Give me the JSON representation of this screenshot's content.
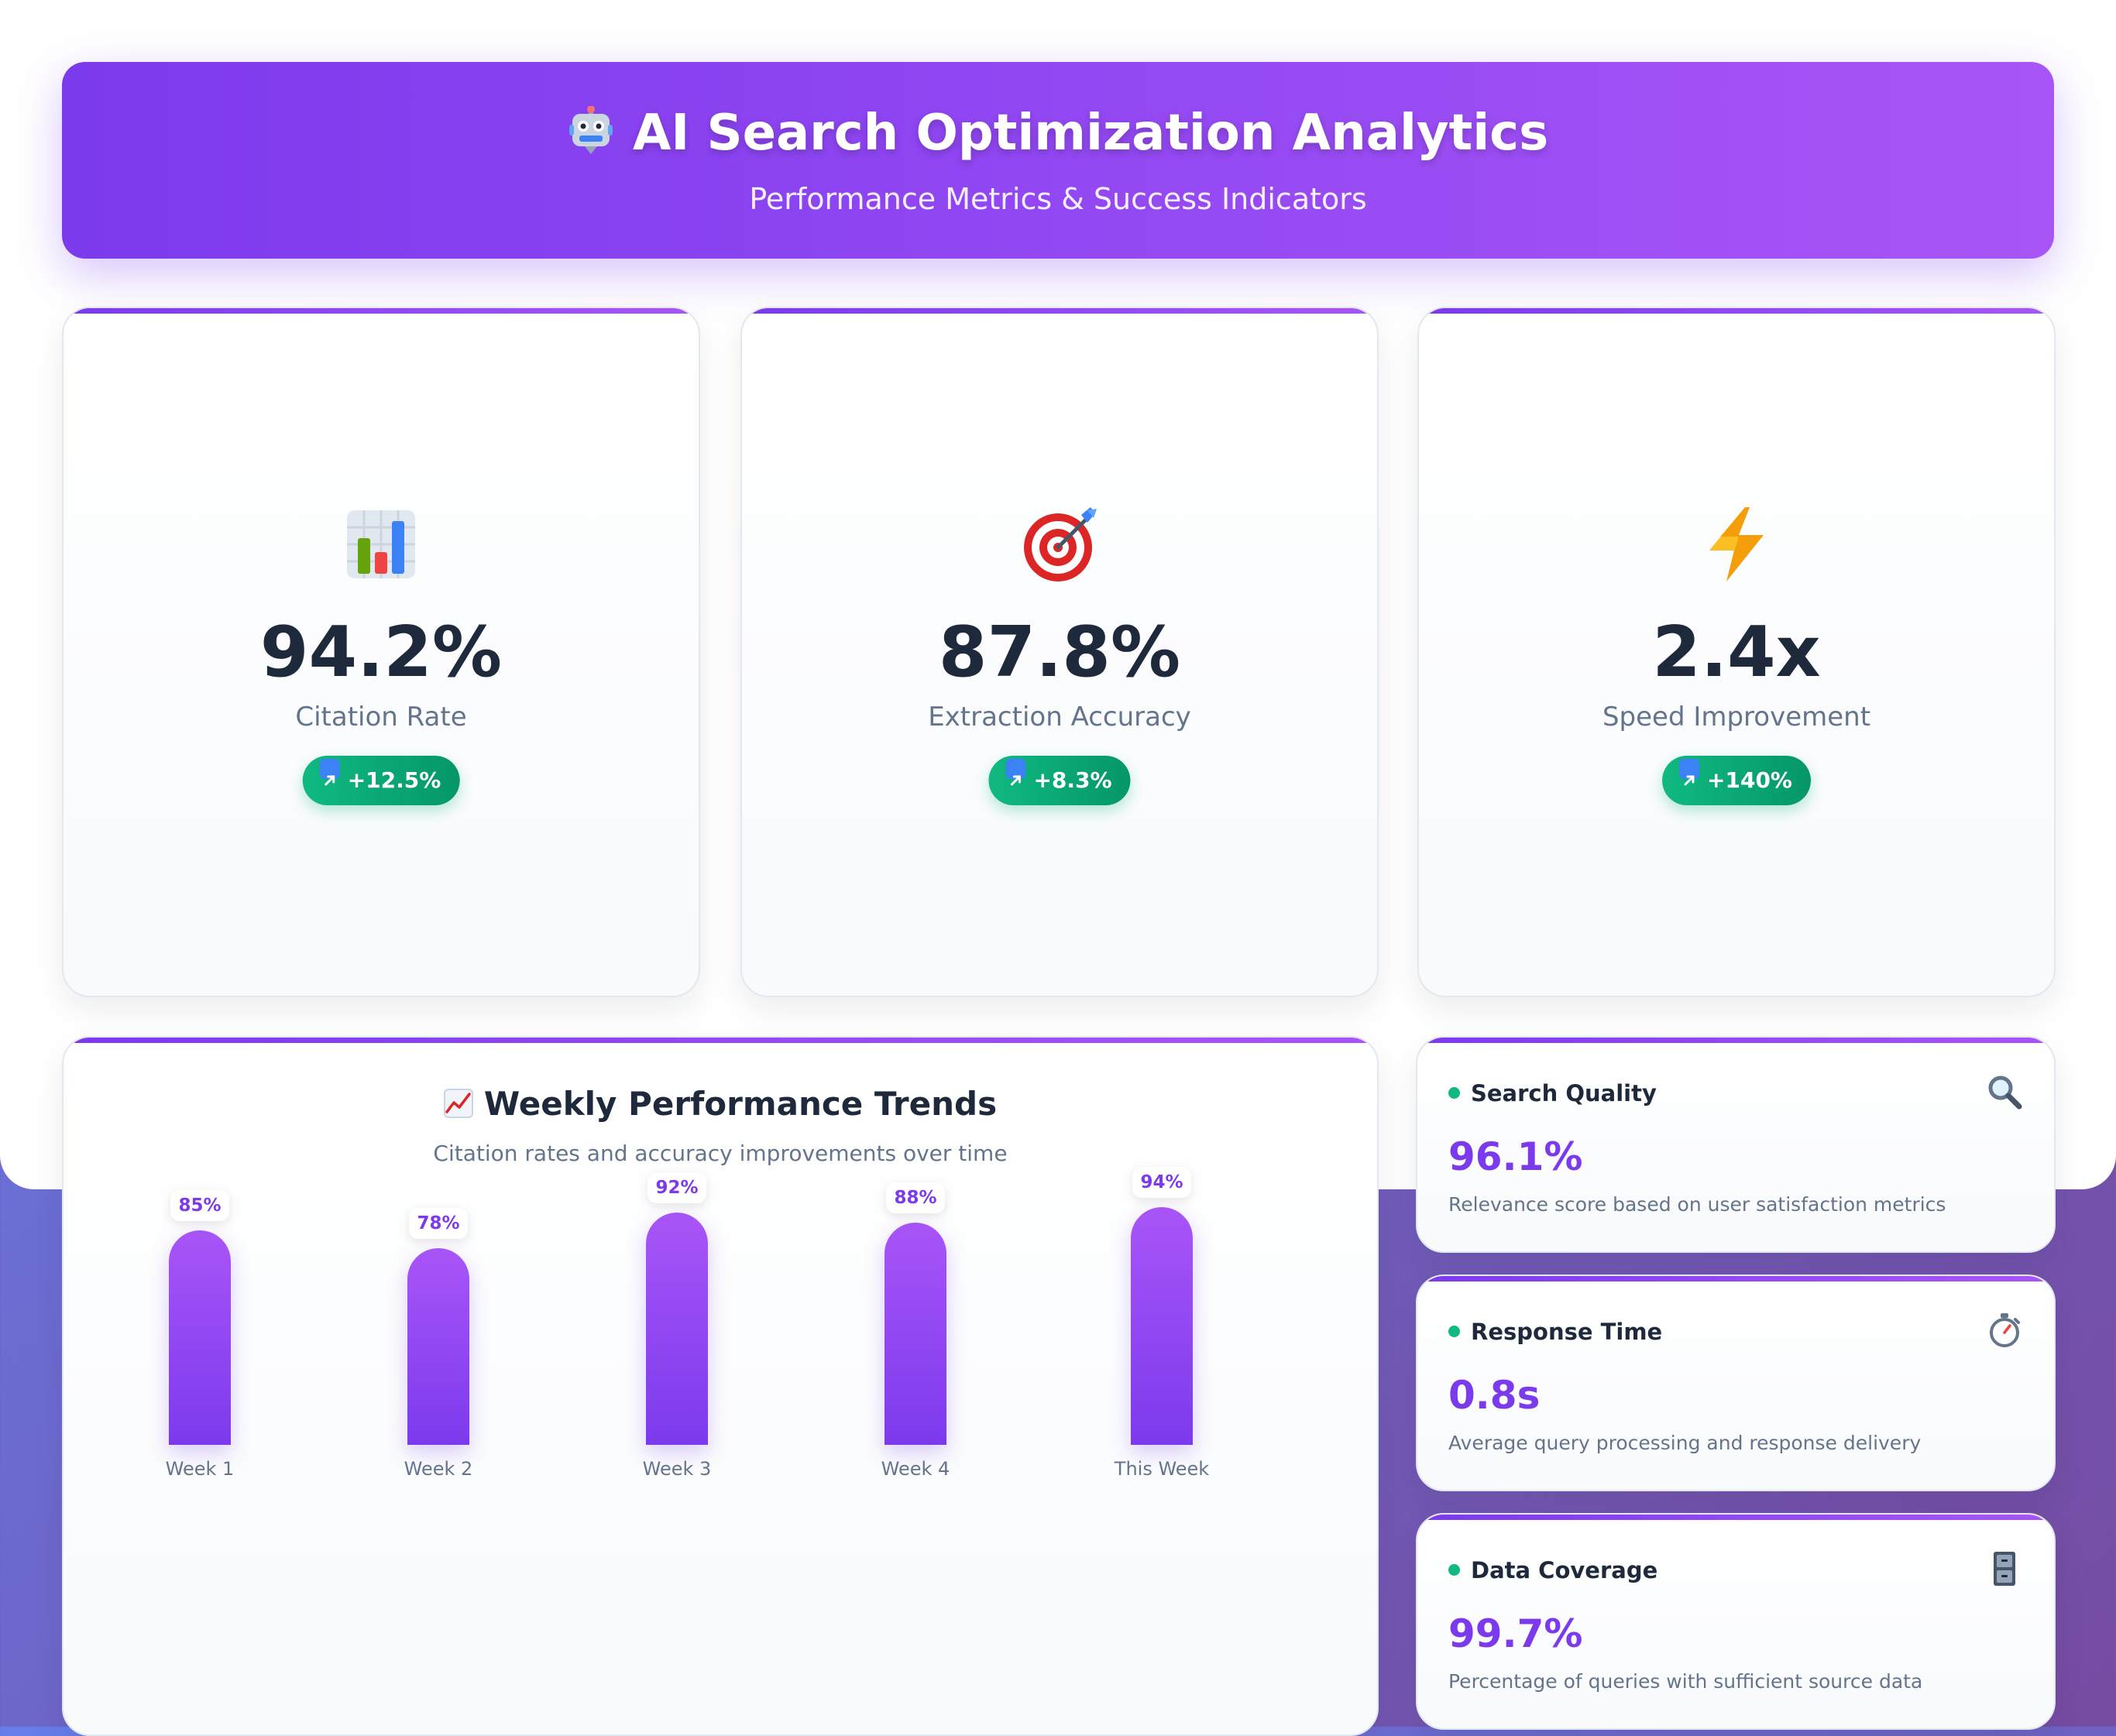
{
  "header": {
    "icon": "robot-icon",
    "title": "AI Search Optimization Analytics",
    "subtitle": "Performance Metrics & Success Indicators"
  },
  "metrics": [
    {
      "icon": "bar-chart-icon",
      "value": "94.2%",
      "label": "Citation Rate",
      "change_icon": "trend-up-arrow-icon",
      "change": "+12.5%"
    },
    {
      "icon": "target-icon",
      "value": "87.8%",
      "label": "Extraction Accuracy",
      "change_icon": "trend-up-arrow-icon",
      "change": "+8.3%"
    },
    {
      "icon": "lightning-icon",
      "value": "2.4x",
      "label": "Speed Improvement",
      "change_icon": "trend-up-arrow-icon",
      "change": "+140%"
    }
  ],
  "trends": {
    "icon": "chart-increasing-icon",
    "title": "Weekly Performance Trends",
    "subtitle": "Citation rates and accuracy improvements over time"
  },
  "chart_data": {
    "type": "bar",
    "categories": [
      "Week 1",
      "Week 2",
      "Week 3",
      "Week 4",
      "This Week"
    ],
    "values": [
      85,
      78,
      92,
      88,
      94
    ],
    "value_labels": [
      "85%",
      "78%",
      "92%",
      "88%",
      "94%"
    ],
    "title": "Weekly Performance Trends",
    "subtitle": "Citation rates and accuracy improvements over time",
    "xlabel": "",
    "ylabel": "",
    "grid": false
  },
  "side_cards": [
    {
      "status_color": "#10b981",
      "title": "Search Quality",
      "icon": "magnifying-glass-icon",
      "value": "96.1%",
      "description": "Relevance score based on user satisfaction metrics"
    },
    {
      "status_color": "#10b981",
      "title": "Response Time",
      "icon": "stopwatch-icon",
      "value": "0.8s",
      "description": "Average query processing and response delivery"
    },
    {
      "status_color": "#10b981",
      "title": "Data Coverage",
      "icon": "file-cabinet-icon",
      "value": "99.7%",
      "description": "Percentage of queries with sufficient source data"
    }
  ],
  "colors": {
    "accent_start": "#7c3aed",
    "accent_end": "#a855f7",
    "positive": "#10b981",
    "text_dark": "#1e293b",
    "text_muted": "#64748b"
  }
}
